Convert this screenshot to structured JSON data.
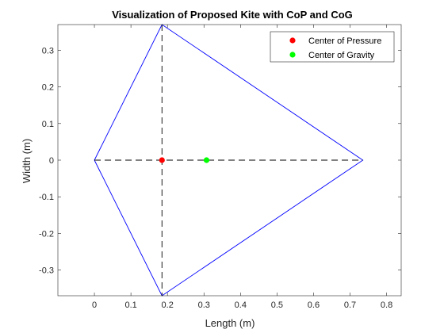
{
  "chart_data": {
    "type": "line",
    "title": "Visualization of Proposed Kite with CoP and CoG",
    "xlabel": "Length (m)",
    "ylabel": "Width (m)",
    "xlim": [
      -0.1,
      0.84
    ],
    "ylim": [
      -0.37,
      0.37
    ],
    "xticks": [
      0,
      0.1,
      0.2,
      0.3,
      0.4,
      0.5,
      0.6,
      0.7,
      0.8
    ],
    "xtick_labels": [
      "0",
      "0.1",
      "0.2",
      "0.3",
      "0.4",
      "0.5",
      "0.6",
      "0.7",
      "0.8"
    ],
    "yticks": [
      0.3,
      0.2,
      0.1,
      0,
      -0.1,
      -0.2,
      -0.3
    ],
    "ytick_labels": [
      "0.3",
      "0.2",
      "0.1",
      "0",
      "-0.1",
      "-0.2",
      "-0.3"
    ],
    "grid": false,
    "legend_position": "top-right",
    "series": [
      {
        "kind": "outline",
        "color": "#0000ff",
        "x": [
          0,
          0.185,
          0.735,
          0.185,
          0
        ],
        "y": [
          0,
          0.37,
          0,
          -0.37,
          0
        ]
      },
      {
        "kind": "dashed-spar",
        "color": "#000000",
        "x": [
          0,
          0.735
        ],
        "y": [
          0,
          0
        ]
      },
      {
        "kind": "dashed-spar",
        "color": "#000000",
        "x": [
          0.185,
          0.185
        ],
        "y": [
          0.37,
          -0.37
        ]
      },
      {
        "kind": "marker",
        "name": "Center of Pressure",
        "color": "#ff0000",
        "x": [
          0.185
        ],
        "y": [
          0
        ]
      },
      {
        "kind": "marker",
        "name": "Center of Gravity",
        "color": "#00ff00",
        "x": [
          0.307
        ],
        "y": [
          0
        ]
      }
    ]
  }
}
